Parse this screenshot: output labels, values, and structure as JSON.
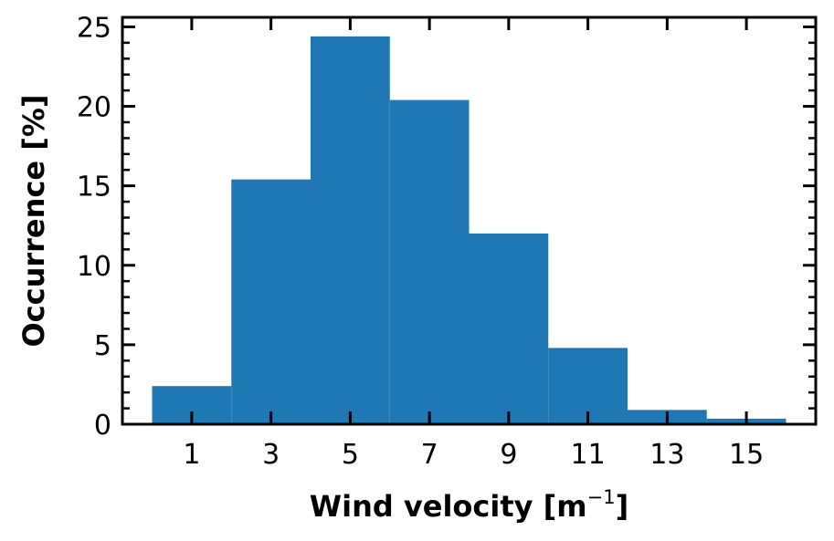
{
  "chart_data": {
    "type": "bar",
    "title": "",
    "xlabel": "Wind velocity [m",
    "xlabel_superscript": "−1",
    "xlabel_suffix": "]",
    "ylabel": "Occurrence [%]",
    "bin_edges": [
      0,
      2,
      4,
      6,
      8,
      10,
      12,
      14,
      16
    ],
    "values": [
      2.4,
      15.4,
      24.4,
      20.4,
      12.0,
      4.8,
      0.9,
      0.35
    ],
    "xticks": [
      1,
      3,
      5,
      7,
      9,
      11,
      13,
      15
    ],
    "xtick_labels": [
      "1",
      "3",
      "5",
      "7",
      "9",
      "11",
      "13",
      "15"
    ],
    "yticks": [
      0,
      5,
      10,
      15,
      20,
      25
    ],
    "ytick_labels": [
      "0",
      "5",
      "10",
      "15",
      "20",
      "25"
    ],
    "xlim": [
      -0.75,
      16.75
    ],
    "ylim": [
      0,
      25.6
    ],
    "bar_color": "#1f77b4",
    "grid": false,
    "legend": "none"
  }
}
